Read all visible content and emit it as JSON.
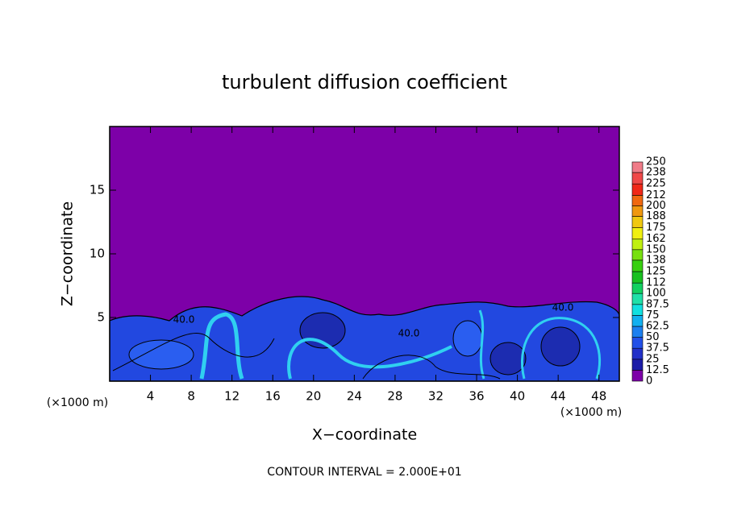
{
  "chart_data": {
    "type": "contour",
    "title": "turbulent diffusion coefficient",
    "xlabel": "X−coordinate",
    "ylabel": "Z−coordinate",
    "x_unit": "(×1000 m)",
    "y_unit": "(×1000 m)",
    "xlim": [
      0,
      50
    ],
    "xticks": [
      4,
      8,
      12,
      16,
      20,
      24,
      28,
      32,
      36,
      40,
      44,
      48
    ],
    "ylim": [
      0,
      20
    ],
    "yticks": [
      5,
      10,
      15
    ],
    "colorbar": {
      "levels": [
        0,
        12.5,
        25,
        37.5,
        50,
        62.5,
        75,
        87.5,
        100,
        112,
        125,
        138,
        150,
        162,
        175,
        188,
        200,
        212,
        225,
        238,
        250
      ],
      "colors": [
        "#7d00a8",
        "#1c1ca8",
        "#2230c8",
        "#2250e8",
        "#1c80f0",
        "#12b0f0",
        "#12e0e0",
        "#20e0a8",
        "#12d060",
        "#18c020",
        "#38d010",
        "#78e010",
        "#c0f010",
        "#f0f010",
        "#f0c810",
        "#f09810",
        "#f06810",
        "#f02818",
        "#f04848",
        "#f07c88"
      ]
    },
    "contour_labels": [
      "40.0",
      "40.0",
      "40.0"
    ],
    "footer": "CONTOUR INTERVAL = 2.000E+01"
  }
}
